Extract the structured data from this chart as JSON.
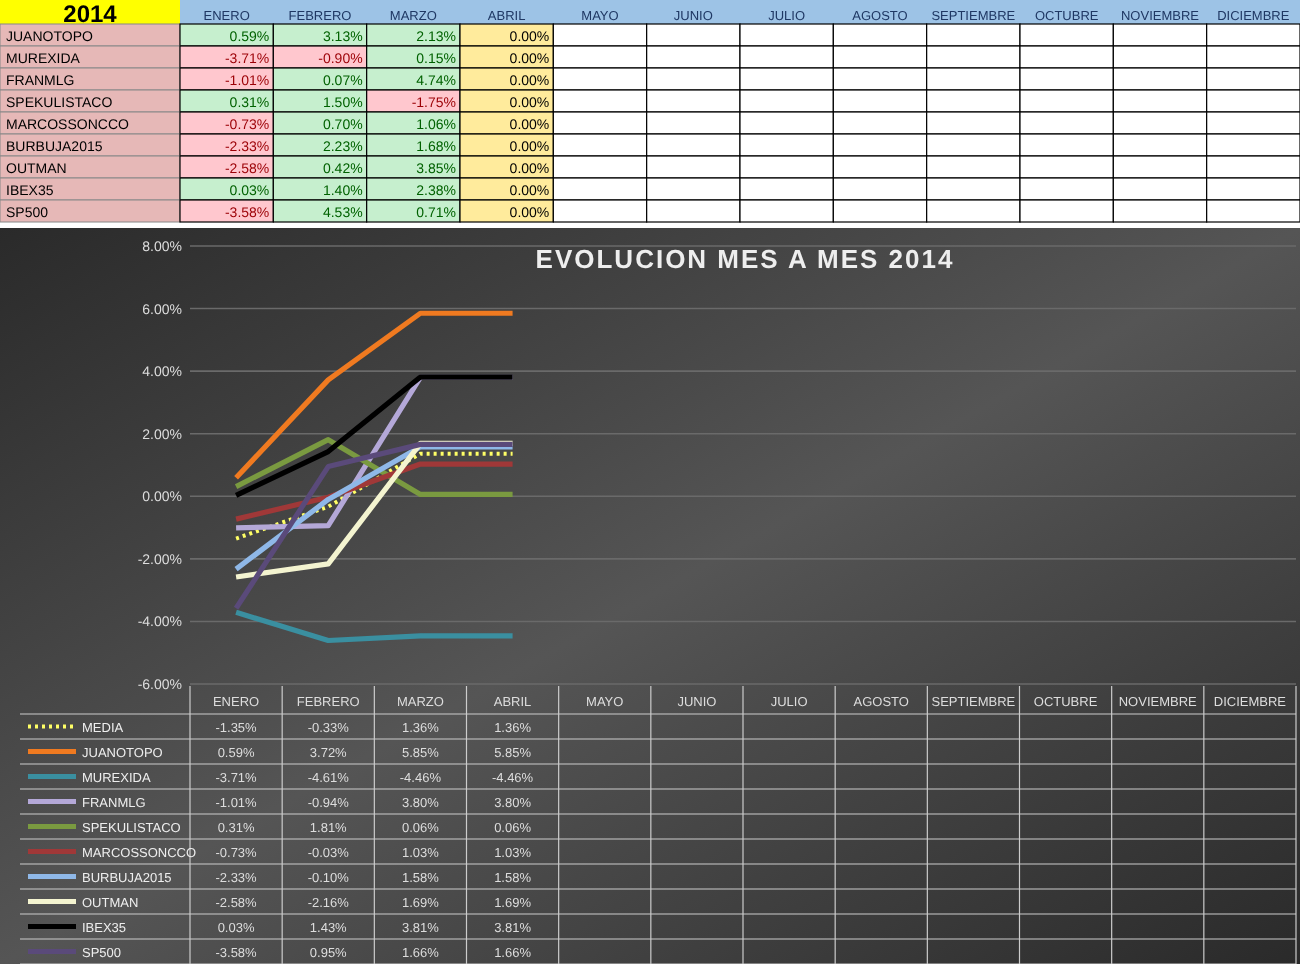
{
  "chart_data": [
    {
      "type": "heatmap",
      "title": "2014",
      "categories": [
        "ENERO",
        "FEBRERO",
        "MARZO",
        "ABRIL",
        "MAYO",
        "JUNIO",
        "JULIO",
        "AGOSTO",
        "SEPTIEMBRE",
        "OCTUBRE",
        "NOVIEMBRE",
        "DICIEMBRE"
      ],
      "y_categories": [
        "JUANOTOPO",
        "MUREXIDA",
        "FRANMLG",
        "SPEKULISTACO",
        "MARCOSSONCCO",
        "BURBUJA2015",
        "OUTMAN",
        "IBEX35",
        "SP500"
      ],
      "cells": [
        [
          0.59,
          3.13,
          2.13,
          0,
          null,
          null,
          null,
          null,
          null,
          null,
          null,
          null
        ],
        [
          -3.71,
          -0.9,
          0.15,
          0,
          null,
          null,
          null,
          null,
          null,
          null,
          null,
          null
        ],
        [
          -1.01,
          0.07,
          4.74,
          0,
          null,
          null,
          null,
          null,
          null,
          null,
          null,
          null
        ],
        [
          0.31,
          1.5,
          -1.75,
          0,
          null,
          null,
          null,
          null,
          null,
          null,
          null,
          null
        ],
        [
          -0.73,
          0.7,
          1.06,
          0,
          null,
          null,
          null,
          null,
          null,
          null,
          null,
          null
        ],
        [
          -2.33,
          2.23,
          1.68,
          0,
          null,
          null,
          null,
          null,
          null,
          null,
          null,
          null
        ],
        [
          -2.58,
          0.42,
          3.85,
          0,
          null,
          null,
          null,
          null,
          null,
          null,
          null,
          null
        ],
        [
          0.03,
          1.4,
          2.38,
          0,
          null,
          null,
          null,
          null,
          null,
          null,
          null,
          null
        ],
        [
          -3.58,
          4.53,
          0.71,
          0,
          null,
          null,
          null,
          null,
          null,
          null,
          null,
          null
        ]
      ],
      "cell_labels": [
        [
          "0.59%",
          "3.13%",
          "2.13%",
          "0.00%",
          null,
          null,
          null,
          null,
          null,
          null,
          null,
          null
        ],
        [
          "-3.71%",
          "-0.90%",
          "0.15%",
          "0.00%",
          null,
          null,
          null,
          null,
          null,
          null,
          null,
          null
        ],
        [
          "-1.01%",
          "0.07%",
          "4.74%",
          "0.00%",
          null,
          null,
          null,
          null,
          null,
          null,
          null,
          null
        ],
        [
          "0.31%",
          "1.50%",
          "-1.75%",
          "0.00%",
          null,
          null,
          null,
          null,
          null,
          null,
          null,
          null
        ],
        [
          "-0.73%",
          "0.70%",
          "1.06%",
          "0.00%",
          null,
          null,
          null,
          null,
          null,
          null,
          null,
          null
        ],
        [
          "-2.33%",
          "2.23%",
          "1.68%",
          "0.00%",
          null,
          null,
          null,
          null,
          null,
          null,
          null,
          null
        ],
        [
          "-2.58%",
          "0.42%",
          "3.85%",
          "0.00%",
          null,
          null,
          null,
          null,
          null,
          null,
          null,
          null
        ],
        [
          "0.03%",
          "1.40%",
          "2.38%",
          "0.00%",
          null,
          null,
          null,
          null,
          null,
          null,
          null,
          null
        ],
        [
          "-3.58%",
          "4.53%",
          "0.71%",
          "0.00%",
          null,
          null,
          null,
          null,
          null,
          null,
          null,
          null
        ]
      ]
    },
    {
      "type": "line",
      "title": "EVOLUCION  MES A MES 2014",
      "categories": [
        "ENERO",
        "FEBRERO",
        "MARZO",
        "ABRIL",
        "MAYO",
        "JUNIO",
        "JULIO",
        "AGOSTO",
        "SEPTIEMBRE",
        "OCTUBRE",
        "NOVIEMBRE",
        "DICIEMBRE"
      ],
      "ylim": [
        -6,
        8
      ],
      "yticks": [
        {
          "value": -6,
          "label": "-6.00%"
        },
        {
          "value": -4,
          "label": "-4.00%"
        },
        {
          "value": -2,
          "label": "-2.00%"
        },
        {
          "value": 0,
          "label": "0.00%"
        },
        {
          "value": 2,
          "label": "2.00%"
        },
        {
          "value": 4,
          "label": "4.00%"
        },
        {
          "value": 6,
          "label": "6.00%"
        },
        {
          "value": 8,
          "label": "8.00%"
        }
      ],
      "grid": "y",
      "legend": "bottom",
      "marker": "none",
      "series": [
        {
          "name": "MEDIA",
          "color": "#ffff66",
          "line_style": "dotted",
          "values": [
            -1.35,
            -0.33,
            1.36,
            1.36,
            null,
            null,
            null,
            null,
            null,
            null,
            null,
            null
          ],
          "value_labels": [
            "-1.35%",
            "-0.33%",
            "1.36%",
            "1.36%",
            null,
            null,
            null,
            null,
            null,
            null,
            null,
            null
          ]
        },
        {
          "name": "JUANOTOPO",
          "color": "#f07a20",
          "values": [
            0.59,
            3.72,
            5.85,
            5.85,
            null,
            null,
            null,
            null,
            null,
            null,
            null,
            null
          ],
          "value_labels": [
            "0.59%",
            "3.72%",
            "5.85%",
            "5.85%",
            null,
            null,
            null,
            null,
            null,
            null,
            null,
            null
          ]
        },
        {
          "name": "MUREXIDA",
          "color": "#3a8fa0",
          "values": [
            -3.71,
            -4.61,
            -4.46,
            -4.46,
            null,
            null,
            null,
            null,
            null,
            null,
            null,
            null
          ],
          "value_labels": [
            "-3.71%",
            "-4.61%",
            "-4.46%",
            "-4.46%",
            null,
            null,
            null,
            null,
            null,
            null,
            null,
            null
          ]
        },
        {
          "name": "FRANMLG",
          "color": "#b4a8d8",
          "values": [
            -1.01,
            -0.94,
            3.8,
            3.8,
            null,
            null,
            null,
            null,
            null,
            null,
            null,
            null
          ],
          "value_labels": [
            "-1.01%",
            "-0.94%",
            "3.80%",
            "3.80%",
            null,
            null,
            null,
            null,
            null,
            null,
            null,
            null
          ]
        },
        {
          "name": "SPEKULISTACO",
          "color": "#7a9a40",
          "values": [
            0.31,
            1.81,
            0.06,
            0.06,
            null,
            null,
            null,
            null,
            null,
            null,
            null,
            null
          ],
          "value_labels": [
            "0.31%",
            "1.81%",
            "0.06%",
            "0.06%",
            null,
            null,
            null,
            null,
            null,
            null,
            null,
            null
          ]
        },
        {
          "name": "MARCOSSONCCO",
          "color": "#a03838",
          "values": [
            -0.73,
            -0.03,
            1.03,
            1.03,
            null,
            null,
            null,
            null,
            null,
            null,
            null,
            null
          ],
          "value_labels": [
            "-0.73%",
            "-0.03%",
            "1.03%",
            "1.03%",
            null,
            null,
            null,
            null,
            null,
            null,
            null,
            null
          ]
        },
        {
          "name": "BURBUJA2015",
          "color": "#8fb8e8",
          "values": [
            -2.33,
            -0.1,
            1.58,
            1.58,
            null,
            null,
            null,
            null,
            null,
            null,
            null,
            null
          ],
          "value_labels": [
            "-2.33%",
            "-0.10%",
            "1.58%",
            "1.58%",
            null,
            null,
            null,
            null,
            null,
            null,
            null,
            null
          ]
        },
        {
          "name": "OUTMAN",
          "color": "#f4f4d0",
          "values": [
            -2.58,
            -2.16,
            1.69,
            1.69,
            null,
            null,
            null,
            null,
            null,
            null,
            null,
            null
          ],
          "value_labels": [
            "-2.58%",
            "-2.16%",
            "1.69%",
            "1.69%",
            null,
            null,
            null,
            null,
            null,
            null,
            null,
            null
          ]
        },
        {
          "name": "IBEX35",
          "color": "#000000",
          "values": [
            0.03,
            1.43,
            3.81,
            3.81,
            null,
            null,
            null,
            null,
            null,
            null,
            null,
            null
          ],
          "value_labels": [
            "0.03%",
            "1.43%",
            "3.81%",
            "3.81%",
            null,
            null,
            null,
            null,
            null,
            null,
            null,
            null
          ]
        },
        {
          "name": "SP500",
          "color": "#5a4a7a",
          "values": [
            -3.58,
            0.95,
            1.66,
            1.66,
            null,
            null,
            null,
            null,
            null,
            null,
            null,
            null
          ],
          "value_labels": [
            "-3.58%",
            "0.95%",
            "1.66%",
            "1.66%",
            null,
            null,
            null,
            null,
            null,
            null,
            null,
            null
          ]
        }
      ]
    }
  ]
}
